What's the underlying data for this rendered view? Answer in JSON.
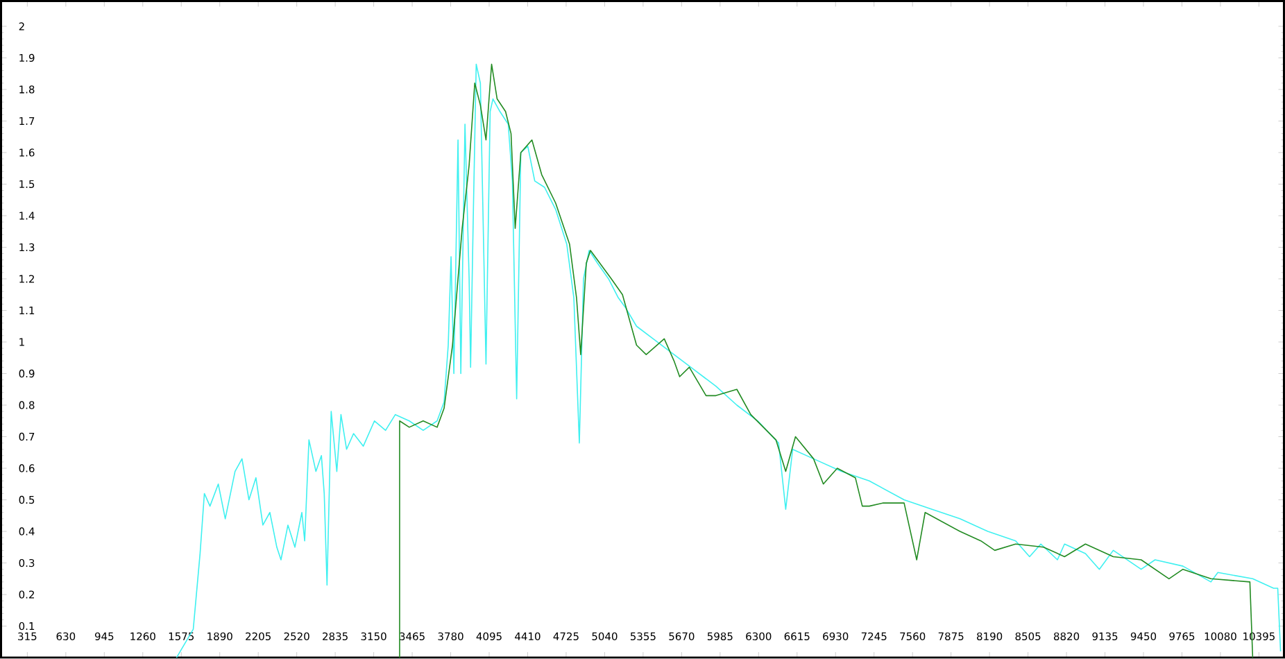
{
  "chart_data": {
    "type": "line",
    "xlim": [
      100,
      10600
    ],
    "ylim": [
      0,
      2.08
    ],
    "xticks": [
      315,
      630,
      945,
      1260,
      1575,
      1890,
      2205,
      2520,
      2835,
      3150,
      3465,
      3780,
      4095,
      4410,
      4725,
      5040,
      5355,
      5670,
      5985,
      6300,
      6615,
      6930,
      7245,
      7560,
      7875,
      8190,
      8505,
      8820,
      9135,
      9450,
      9765,
      10080,
      10395
    ],
    "yticks": [
      0.1,
      0.2,
      0.3,
      0.4,
      0.5,
      0.6,
      0.7,
      0.8,
      0.9,
      1,
      1.1,
      1.2,
      1.3,
      1.4,
      1.5,
      1.6,
      1.7,
      1.8,
      1.9,
      2
    ],
    "grid": false,
    "marker": "none",
    "line_style": "solid",
    "series": [
      {
        "color": "#3ff0f0",
        "x": [
          1536,
          1673,
          1729,
          1764,
          1810,
          1878,
          1935,
          2015,
          2072,
          2129,
          2186,
          2243,
          2300,
          2357,
          2391,
          2448,
          2505,
          2562,
          2585,
          2620,
          2677,
          2722,
          2745,
          2768,
          2802,
          2848,
          2882,
          2928,
          2985,
          3065,
          3156,
          3247,
          3327,
          3441,
          3555,
          3669,
          3726,
          3760,
          3783,
          3806,
          3840,
          3863,
          3897,
          3931,
          3943,
          3966,
          3989,
          4023,
          4069,
          4103,
          4126,
          4183,
          4251,
          4285,
          4320,
          4354,
          4411,
          4468,
          4548,
          4639,
          4730,
          4788,
          4833,
          4867,
          4913,
          4981,
          5072,
          5152,
          5209,
          5301,
          5437,
          5608,
          5779,
          5950,
          6122,
          6293,
          6464,
          6522,
          6579,
          6750,
          6978,
          7206,
          7491,
          7720,
          7948,
          8176,
          8404,
          8518,
          8610,
          8746,
          8804,
          8975,
          9089,
          9203,
          9431,
          9545,
          9773,
          10002,
          10059,
          10344,
          10515,
          10549,
          10572
        ],
        "values": [
          0,
          0.09,
          0.33,
          0.52,
          0.48,
          0.55,
          0.44,
          0.59,
          0.63,
          0.5,
          0.57,
          0.42,
          0.46,
          0.35,
          0.31,
          0.42,
          0.35,
          0.46,
          0.37,
          0.69,
          0.59,
          0.64,
          0.52,
          0.23,
          0.78,
          0.59,
          0.77,
          0.66,
          0.71,
          0.67,
          0.75,
          0.72,
          0.77,
          0.75,
          0.72,
          0.75,
          0.81,
          0.99,
          1.27,
          0.9,
          1.64,
          0.9,
          1.69,
          1.2,
          0.92,
          1.42,
          1.88,
          1.82,
          0.93,
          1.73,
          1.77,
          1.73,
          1.69,
          1.51,
          0.82,
          1.6,
          1.62,
          1.51,
          1.49,
          1.42,
          1.31,
          1.14,
          0.68,
          1.2,
          1.29,
          1.25,
          1.2,
          1.14,
          1.11,
          1.05,
          1.01,
          0.96,
          0.91,
          0.86,
          0.8,
          0.75,
          0.68,
          0.47,
          0.66,
          0.63,
          0.59,
          0.56,
          0.5,
          0.47,
          0.44,
          0.4,
          0.37,
          0.32,
          0.36,
          0.31,
          0.36,
          0.33,
          0.28,
          0.34,
          0.28,
          0.31,
          0.29,
          0.24,
          0.27,
          0.25,
          0.22,
          0.22,
          0.02
        ]
      },
      {
        "color": "#228b22",
        "x": [
          3362,
          3362,
          3441,
          3555,
          3669,
          3726,
          3795,
          3874,
          3931,
          3977,
          4023,
          4069,
          4115,
          4160,
          4229,
          4274,
          4308,
          4354,
          4445,
          4525,
          4639,
          4753,
          4810,
          4844,
          4890,
          4924,
          5095,
          5186,
          5301,
          5380,
          5528,
          5608,
          5654,
          5733,
          5870,
          5950,
          6122,
          6236,
          6442,
          6522,
          6602,
          6750,
          6830,
          6944,
          7092,
          7149,
          7206,
          7320,
          7491,
          7594,
          7663,
          7948,
          8119,
          8233,
          8404,
          8632,
          8804,
          8975,
          9203,
          9431,
          9659,
          9773,
          10002,
          10321,
          10344
        ],
        "values": [
          0,
          0.75,
          0.73,
          0.75,
          0.73,
          0.79,
          0.99,
          1.36,
          1.56,
          1.82,
          1.75,
          1.64,
          1.88,
          1.77,
          1.73,
          1.66,
          1.36,
          1.6,
          1.64,
          1.53,
          1.44,
          1.31,
          1.14,
          0.96,
          1.25,
          1.29,
          1.2,
          1.15,
          0.99,
          0.96,
          1.01,
          0.94,
          0.89,
          0.92,
          0.83,
          0.83,
          0.85,
          0.77,
          0.69,
          0.59,
          0.7,
          0.63,
          0.55,
          0.6,
          0.57,
          0.48,
          0.48,
          0.49,
          0.49,
          0.31,
          0.46,
          0.4,
          0.37,
          0.34,
          0.36,
          0.35,
          0.32,
          0.36,
          0.32,
          0.31,
          0.25,
          0.28,
          0.25,
          0.24,
          0
        ]
      }
    ]
  }
}
